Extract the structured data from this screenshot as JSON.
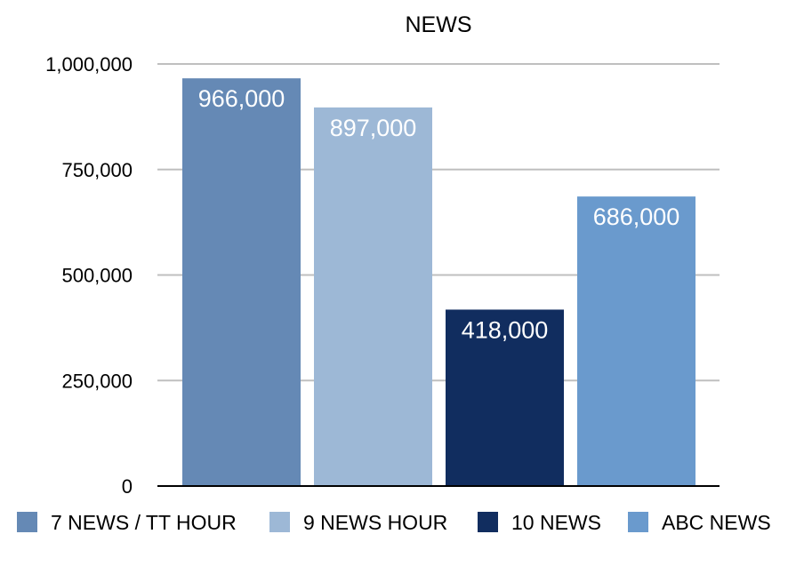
{
  "chart_data": {
    "type": "bar",
    "title": "NEWS",
    "xlabel": "",
    "ylabel": "",
    "ylim": [
      0,
      1000000
    ],
    "y_ticks": [
      {
        "value": 0,
        "label": "0"
      },
      {
        "value": 250000,
        "label": "250,000"
      },
      {
        "value": 500000,
        "label": "500,000"
      },
      {
        "value": 750000,
        "label": "750,000"
      },
      {
        "value": 1000000,
        "label": "1,000,000"
      }
    ],
    "grid": true,
    "legend_position": "bottom",
    "series": [
      {
        "name": "7 NEWS / TT HOUR",
        "value": 966000,
        "label": "966,000",
        "color": "#6589B5"
      },
      {
        "name": "9 NEWS HOUR",
        "value": 897000,
        "label": "897,000",
        "color": "#9DB8D6"
      },
      {
        "name": "10 NEWS",
        "value": 418000,
        "label": "418,000",
        "color": "#112D5F"
      },
      {
        "name": "ABC NEWS",
        "value": 686000,
        "label": "686,000",
        "color": "#6A9ACD"
      }
    ]
  }
}
